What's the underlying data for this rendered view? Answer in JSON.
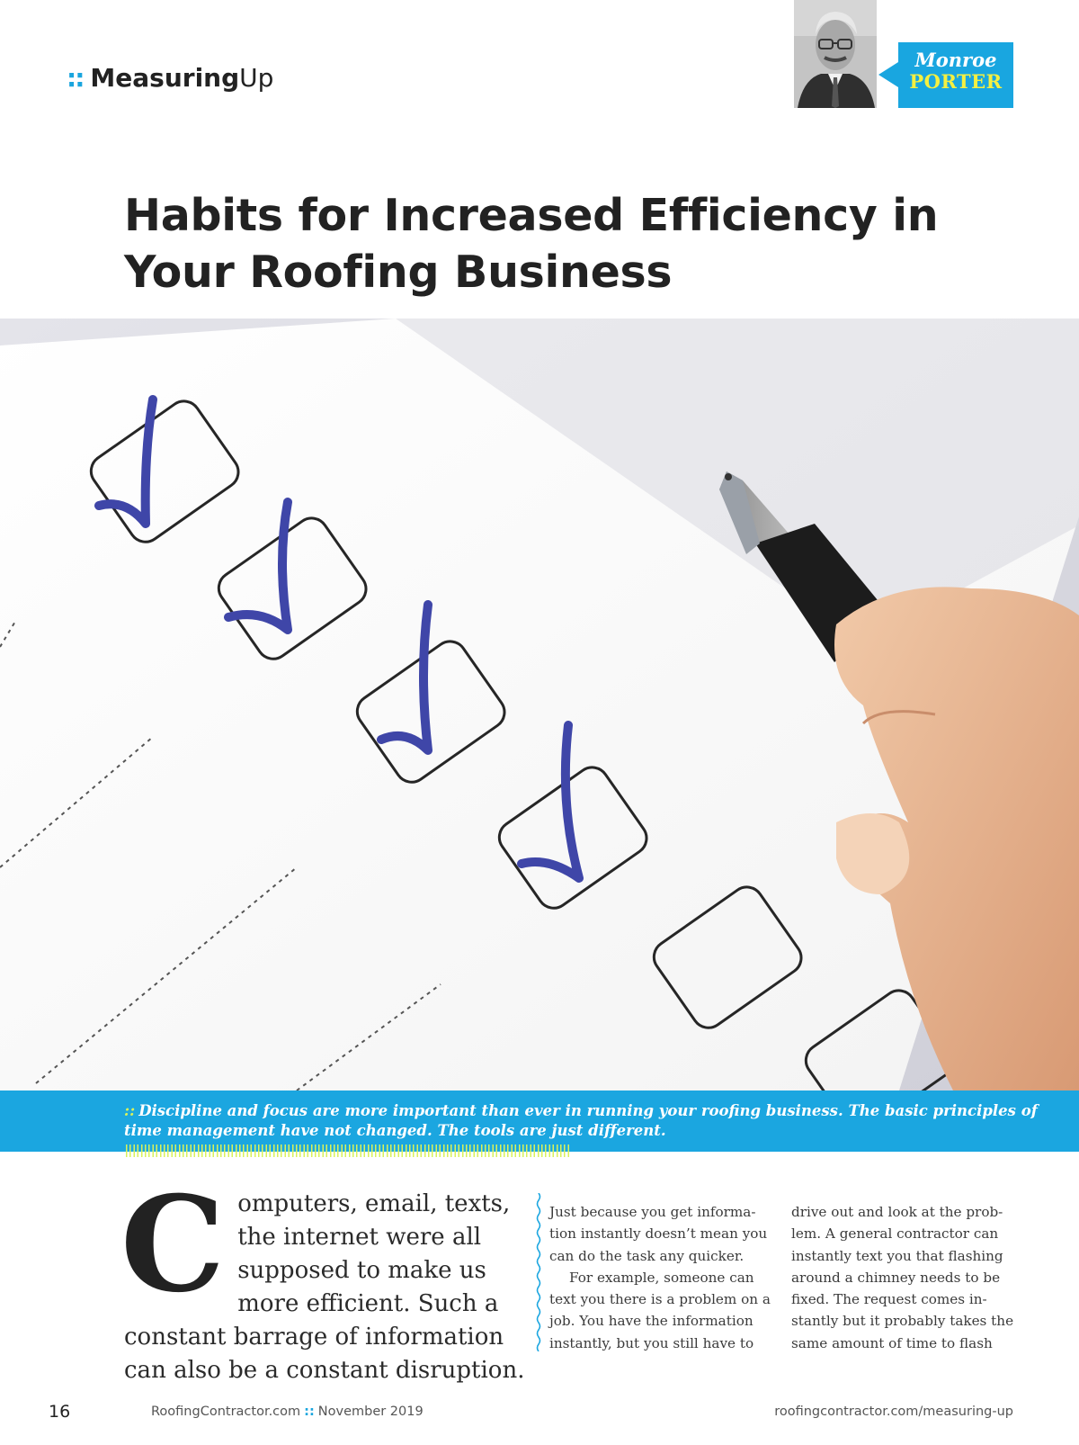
{
  "header": {
    "section_bold": "Measuring",
    "section_light": "Up",
    "dots": "::"
  },
  "author": {
    "first_name": "Monroe",
    "last_name": "PORTER"
  },
  "article": {
    "title": "Habits for Increased Efficiency in Your Roofing Business",
    "caption": "Discipline and focus are more important than ever in running your roofing business. The basic principles of time management have not changed. The tools are just different.",
    "dropcap": "C",
    "lead": "omputers, email, texts, the internet were all supposed to make us more efficient. Such a constant barrage of information can also be a constant disruption.",
    "col2_p1": "Just because you get informa-tion instantly doesn’t mean you can do the task any quicker.",
    "col2_p2": "For example, someone can text you there is a problem on a job. You have the information instantly, but you still have to",
    "col3_p1": "drive out and look at the prob-lem. A general contractor can instantly text you that flashing around a chimney needs to be fixed. The request comes in-stantly but it probably takes the same amount of time to flash"
  },
  "footer": {
    "page_number": "16",
    "site": "RoofingContractor.com",
    "separator": "::",
    "date": "November 2019",
    "url": "roofingcontractor.com/measuring-up"
  },
  "colors": {
    "accent_blue": "#1ba6e0",
    "accent_yellow": "#f4f041",
    "checkmark_ink": "#3f46a8"
  }
}
